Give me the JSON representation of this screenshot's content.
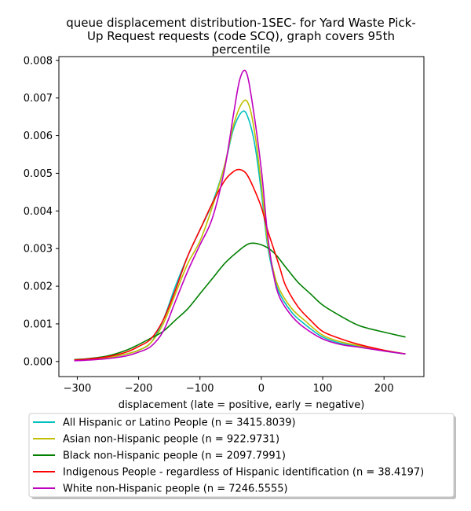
{
  "chart_data": {
    "type": "line",
    "title_lines": [
      "queue displacement distribution-1SEC-  for Yard Waste Pick-",
      "Up Request  requests (code SCQ), graph covers 95th",
      "percentile"
    ],
    "xlabel": "displacement (late = positive, early = negative)",
    "ylabel": "",
    "xlim": [
      -330,
      265
    ],
    "ylim": [
      -0.0004,
      0.0081
    ],
    "xticks": [
      -300,
      -200,
      -100,
      0,
      100,
      200
    ],
    "xtick_labels": [
      "−300",
      "−200",
      "−100",
      "0",
      "100",
      "200"
    ],
    "yticks": [
      0.0,
      0.001,
      0.002,
      0.003,
      0.004,
      0.005,
      0.006,
      0.007,
      0.008
    ],
    "ytick_labels": [
      "0.000",
      "0.001",
      "0.002",
      "0.003",
      "0.004",
      "0.005",
      "0.006",
      "0.007",
      "0.008"
    ],
    "grid": false,
    "legend_placement": "below",
    "series": [
      {
        "name": "All Hispanic or Latino People (n = 3415.8039)",
        "color": "#00bfbf",
        "x": [
          -305,
          -280,
          -250,
          -220,
          -200,
          -180,
          -160,
          -140,
          -120,
          -100,
          -80,
          -60,
          -45,
          -30,
          -20,
          -10,
          0,
          10,
          20,
          30,
          50,
          70,
          100,
          130,
          160,
          200,
          235
        ],
        "y": [
          3e-05,
          5e-05,
          0.0001,
          0.0002,
          0.0003,
          0.0005,
          0.0011,
          0.002,
          0.0028,
          0.0035,
          0.0042,
          0.0052,
          0.0062,
          0.00665,
          0.0064,
          0.0057,
          0.0045,
          0.0031,
          0.0023,
          0.0018,
          0.0013,
          0.001,
          0.00065,
          0.00048,
          0.0004,
          0.00028,
          0.0002
        ]
      },
      {
        "name": "Asian non-Hispanic people (n = 922.9731)",
        "color": "#bfbf00",
        "x": [
          -305,
          -280,
          -250,
          -220,
          -200,
          -180,
          -160,
          -140,
          -120,
          -100,
          -80,
          -60,
          -45,
          -30,
          -20,
          -10,
          0,
          10,
          20,
          30,
          50,
          70,
          100,
          130,
          160,
          200,
          235
        ],
        "y": [
          3e-05,
          5e-05,
          0.0001,
          0.0002,
          0.0003,
          0.0005,
          0.001,
          0.0018,
          0.0026,
          0.0032,
          0.0041,
          0.0052,
          0.0063,
          0.0069,
          0.0068,
          0.006,
          0.0047,
          0.0032,
          0.0024,
          0.0019,
          0.0014,
          0.0011,
          0.0007,
          0.00052,
          0.00042,
          0.0003,
          0.0002
        ]
      },
      {
        "name": "Black non-Hispanic people (n = 2097.7991)",
        "color": "#008000",
        "x": [
          -305,
          -280,
          -250,
          -220,
          -200,
          -180,
          -160,
          -140,
          -120,
          -100,
          -80,
          -60,
          -40,
          -20,
          0,
          20,
          40,
          60,
          80,
          100,
          130,
          160,
          200,
          235
        ],
        "y": [
          5e-05,
          8e-05,
          0.00015,
          0.0003,
          0.00045,
          0.00062,
          0.0008,
          0.0011,
          0.0014,
          0.0018,
          0.0022,
          0.0026,
          0.0029,
          0.00313,
          0.0031,
          0.0029,
          0.0025,
          0.0021,
          0.0018,
          0.0015,
          0.0012,
          0.00095,
          0.00078,
          0.00065
        ]
      },
      {
        "name": "Indigenous People - regardless of Hispanic identification (n = 38.4197)",
        "color": "#ff0000",
        "x": [
          -305,
          -280,
          -250,
          -220,
          -200,
          -180,
          -160,
          -140,
          -120,
          -100,
          -80,
          -60,
          -45,
          -35,
          -25,
          -15,
          0,
          10,
          20,
          30,
          40,
          60,
          80,
          100,
          130,
          160,
          200,
          235
        ],
        "y": [
          4e-05,
          7e-05,
          0.00013,
          0.00025,
          0.0004,
          0.0006,
          0.0011,
          0.0019,
          0.0028,
          0.0035,
          0.0042,
          0.0048,
          0.00505,
          0.0051,
          0.005,
          0.0047,
          0.0041,
          0.0035,
          0.003,
          0.0025,
          0.002,
          0.00145,
          0.0011,
          0.0008,
          0.0006,
          0.00045,
          0.0003,
          0.0002
        ]
      },
      {
        "name": "White non-Hispanic people (n = 7246.5555)",
        "color": "#bf00bf",
        "x": [
          -305,
          -280,
          -250,
          -220,
          -200,
          -180,
          -160,
          -140,
          -120,
          -100,
          -80,
          -60,
          -45,
          -35,
          -25,
          -15,
          0,
          10,
          20,
          30,
          50,
          70,
          100,
          130,
          160,
          200,
          235
        ],
        "y": [
          2e-05,
          4e-05,
          8e-05,
          0.00015,
          0.00025,
          0.0004,
          0.0008,
          0.0016,
          0.0024,
          0.0031,
          0.0038,
          0.0051,
          0.0066,
          0.0075,
          0.0077,
          0.0069,
          0.0051,
          0.0034,
          0.0023,
          0.0017,
          0.0012,
          0.0009,
          0.0006,
          0.00045,
          0.00038,
          0.00028,
          0.0002
        ]
      }
    ]
  }
}
